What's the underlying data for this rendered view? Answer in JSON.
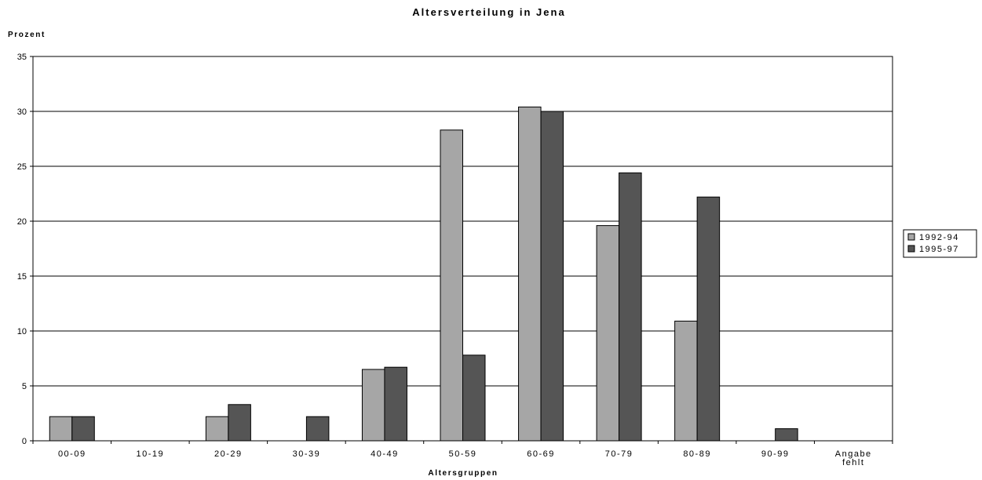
{
  "chart_data": {
    "type": "bar",
    "title": "Altersverteilung in Jena",
    "ylabel": "Prozent",
    "xlabel": "Altersgruppen",
    "ylim": [
      0,
      35
    ],
    "yticks": [
      0,
      5,
      10,
      15,
      20,
      25,
      30,
      35
    ],
    "grid": true,
    "legend_position": "right",
    "categories": [
      "00-09",
      "10-19",
      "20-29",
      "30-39",
      "40-49",
      "50-59",
      "60-69",
      "70-79",
      "80-89",
      "90-99",
      [
        "Angabe",
        "fehlt"
      ]
    ],
    "series": [
      {
        "name": "1992-94",
        "color": "#a6a6a6",
        "values": [
          2.2,
          0,
          2.2,
          0,
          6.5,
          28.3,
          30.4,
          19.6,
          10.9,
          0,
          0
        ]
      },
      {
        "name": "1995-97",
        "color": "#555555",
        "values": [
          2.2,
          0,
          3.3,
          2.2,
          6.7,
          7.8,
          30.0,
          24.4,
          22.2,
          1.1,
          0
        ]
      }
    ]
  }
}
